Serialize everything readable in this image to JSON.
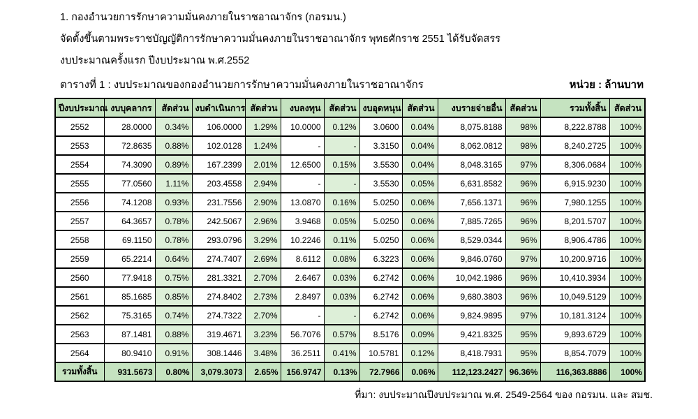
{
  "intro": {
    "line1": "1. กองอำนวยการรักษาความมั่นคงภายในราชอาณาจักร (กอรมน.)",
    "line2": "จัดตั้งขึ้นตามพระราชบัญญัติการรักษาความมั่นคงภายในราชอาณาจักร พุทธศักราช 2551 ได้รับจัดสรร",
    "line3": "งบประมาณครั้งแรก ปีงบประมาณ พ.ศ.2552"
  },
  "table": {
    "title": "ตารางที่ 1 : งบประมาณของกองอำนวยการรักษาความมั่นคงภายในราชอาณาจักร",
    "unit_label": "หน่วย : ล้านบาท",
    "columns": [
      "ปีงบประมาณ",
      "งบบุคลากร",
      "สัดส่วน",
      "งบดำเนินการ",
      "สัดส่วน",
      "งบลงทุน",
      "สัดส่วน",
      "งบอุดหนุน",
      "สัดส่วน",
      "งบรายจ่ายอื่น",
      "สัดส่วน",
      "รวมทั้งสิ้น",
      "สัดส่วน"
    ],
    "rows": [
      [
        "2552",
        "28.0000",
        "0.34%",
        "106.0000",
        "1.29%",
        "10.0000",
        "0.12%",
        "3.0600",
        "0.04%",
        "8,075.8188",
        "98%",
        "8,222.8788",
        "100%"
      ],
      [
        "2553",
        "72.8635",
        "0.88%",
        "102.0128",
        "1.24%",
        "-",
        "-",
        "3.3150",
        "0.04%",
        "8,062.0812",
        "98%",
        "8,240.2725",
        "100%"
      ],
      [
        "2554",
        "74.3090",
        "0.89%",
        "167.2399",
        "2.01%",
        "12.6500",
        "0.15%",
        "3.5530",
        "0.04%",
        "8,048.3165",
        "97%",
        "8,306.0684",
        "100%"
      ],
      [
        "2555",
        "77.0560",
        "1.11%",
        "203.4558",
        "2.94%",
        "-",
        "-",
        "3.5530",
        "0.05%",
        "6,631.8582",
        "96%",
        "6,915.9230",
        "100%"
      ],
      [
        "2556",
        "74.1208",
        "0.93%",
        "231.7556",
        "2.90%",
        "13.0870",
        "0.16%",
        "5.0250",
        "0.06%",
        "7,656.1371",
        "96%",
        "7,980.1255",
        "100%"
      ],
      [
        "2557",
        "64.3657",
        "0.78%",
        "242.5067",
        "2.96%",
        "3.9468",
        "0.05%",
        "5.0250",
        "0.06%",
        "7,885.7265",
        "96%",
        "8,201.5707",
        "100%"
      ],
      [
        "2558",
        "69.1150",
        "0.78%",
        "293.0796",
        "3.29%",
        "10.2246",
        "0.11%",
        "5.0250",
        "0.06%",
        "8,529.0344",
        "96%",
        "8,906.4786",
        "100%"
      ],
      [
        "2559",
        "65.2214",
        "0.64%",
        "274.7407",
        "2.69%",
        "8.6112",
        "0.08%",
        "6.3223",
        "0.06%",
        "9,846.0760",
        "97%",
        "10,200.9716",
        "100%"
      ],
      [
        "2560",
        "77.9418",
        "0.75%",
        "281.3321",
        "2.70%",
        "2.6467",
        "0.03%",
        "6.2742",
        "0.06%",
        "10,042.1986",
        "96%",
        "10,410.3934",
        "100%"
      ],
      [
        "2561",
        "85.1685",
        "0.85%",
        "274.8402",
        "2.73%",
        "2.8497",
        "0.03%",
        "6.2742",
        "0.06%",
        "9,680.3803",
        "96%",
        "10,049.5129",
        "100%"
      ],
      [
        "2562",
        "75.3165",
        "0.74%",
        "274.7322",
        "2.70%",
        "-",
        "-",
        "6.2742",
        "0.06%",
        "9,824.9895",
        "97%",
        "10,181.3124",
        "100%"
      ],
      [
        "2563",
        "87.1481",
        "0.88%",
        "319.4671",
        "3.23%",
        "56.7076",
        "0.57%",
        "8.5176",
        "0.09%",
        "9,421.8325",
        "95%",
        "9,893.6729",
        "100%"
      ],
      [
        "2564",
        "80.9410",
        "0.91%",
        "308.1446",
        "3.48%",
        "36.2511",
        "0.41%",
        "10.5781",
        "0.12%",
        "8,418.7931",
        "95%",
        "8,854.7079",
        "100%"
      ]
    ],
    "total_row": [
      "รวมทั้งสิ้น",
      "931.5673",
      "0.80%",
      "3,079.3073",
      "2.65%",
      "156.9747",
      "0.13%",
      "72.7966",
      "0.06%",
      "112,123.2427",
      "96.36%",
      "116,363.8886",
      "100%"
    ],
    "colors": {
      "header_bg": "#C5E3C0",
      "pct_bg": "#DDEFD8",
      "total_bg": "#C5E3C0",
      "border": "#000000"
    }
  },
  "footer": {
    "source": "ที่มา: งบประมาณปีงบประมาณ พ.ศ. 2549-2564 ของ กอรมน. และ สมช."
  }
}
